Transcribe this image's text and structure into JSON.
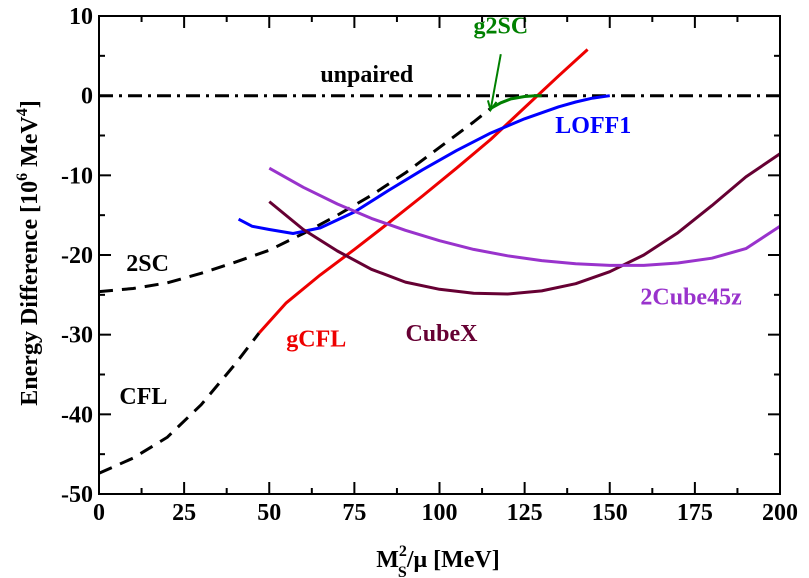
{
  "chart_data": {
    "type": "line",
    "title": "",
    "xlabel": {
      "base": "M",
      "sup": "2",
      "sub": "S",
      "rest": "/μ [MeV]"
    },
    "ylabel": {
      "main": "Energy Difference  [10",
      "sup1": "6",
      "mid": " MeV",
      "sup2": "4",
      "end": "]"
    },
    "xlim": [
      0,
      200
    ],
    "ylim": [
      -50,
      10
    ],
    "xticks": [
      0,
      25,
      50,
      75,
      100,
      125,
      150,
      175,
      200
    ],
    "yticks": [
      -50,
      -40,
      -30,
      -20,
      -10,
      0,
      10
    ],
    "grid": false,
    "legend": "none",
    "series": [
      {
        "name": "unpaired",
        "color": "#000000",
        "style": "dashdot",
        "x": [
          0,
          200
        ],
        "y": [
          0,
          0
        ]
      },
      {
        "name": "2SC",
        "color": "#000000",
        "style": "dashed",
        "x": [
          0,
          10,
          20,
          30,
          40,
          50,
          60,
          70,
          80,
          90,
          100,
          110,
          115
        ],
        "y": [
          -24.6,
          -24.2,
          -23.5,
          -22.3,
          -20.9,
          -19.4,
          -17.3,
          -15.0,
          -12.5,
          -9.7,
          -6.5,
          -3.3,
          -1.6
        ]
      },
      {
        "name": "CFL",
        "color": "#000000",
        "style": "dashed",
        "x": [
          0,
          10,
          20,
          30,
          40,
          47
        ],
        "y": [
          -47.4,
          -45.5,
          -42.9,
          -38.8,
          -33.7,
          -29.8
        ]
      },
      {
        "name": "gCFL",
        "color": "#ee0000",
        "style": "solid",
        "x": [
          47,
          55,
          65,
          75,
          85,
          95,
          105,
          115,
          125,
          135,
          143.5
        ],
        "y": [
          -29.8,
          -26.0,
          -22.5,
          -19.3,
          -16.0,
          -12.6,
          -9.1,
          -5.5,
          -1.5,
          2.5,
          5.8
        ]
      },
      {
        "name": "g2SC",
        "color": "#008000",
        "style": "solid",
        "x": [
          115,
          118,
          121,
          125,
          128,
          130
        ],
        "y": [
          -1.6,
          -0.9,
          -0.4,
          -0.1,
          0,
          0
        ]
      },
      {
        "name": "LOFF1",
        "color": "#0000ff",
        "style": "solid",
        "x": [
          41,
          45,
          50,
          57,
          65,
          75,
          85,
          95,
          105,
          115,
          125,
          135,
          140,
          145,
          150
        ],
        "y": [
          -15.5,
          -16.4,
          -16.8,
          -17.3,
          -16.6,
          -14.6,
          -11.9,
          -9.3,
          -6.9,
          -4.7,
          -2.9,
          -1.4,
          -0.8,
          -0.3,
          0
        ]
      },
      {
        "name": "CubeX",
        "color": "#660033",
        "style": "solid",
        "x": [
          50,
          60,
          70,
          80,
          90,
          100,
          110,
          120,
          130,
          140,
          150,
          160,
          170,
          180,
          190,
          200
        ],
        "y": [
          -13.3,
          -16.8,
          -19.5,
          -21.8,
          -23.4,
          -24.3,
          -24.8,
          -24.9,
          -24.5,
          -23.6,
          -22.1,
          -20.0,
          -17.2,
          -13.8,
          -10.2,
          -7.3
        ]
      },
      {
        "name": "2Cube45z",
        "color": "#9933cc",
        "style": "solid",
        "x": [
          50,
          60,
          70,
          80,
          90,
          100,
          110,
          120,
          130,
          140,
          150,
          160,
          170,
          180,
          190,
          200
        ],
        "y": [
          -9.1,
          -11.5,
          -13.6,
          -15.4,
          -16.9,
          -18.2,
          -19.3,
          -20.1,
          -20.7,
          -21.1,
          -21.3,
          -21.3,
          -21.0,
          -20.4,
          -19.2,
          -16.4
        ]
      }
    ],
    "annotations": [
      {
        "text": "unpaired",
        "color": "#000000",
        "x": 65,
        "y": 1.7
      },
      {
        "text": "g2SC",
        "color": "#008000",
        "x": 110,
        "y": 7.8
      },
      {
        "text": "LOFF1",
        "color": "#0000ff",
        "x": 134,
        "y": -4.7
      },
      {
        "text": "2SC",
        "color": "#000000",
        "x": 8,
        "y": -22.0
      },
      {
        "text": "gCFL",
        "color": "#ee0000",
        "x": 55,
        "y": -31.5
      },
      {
        "text": "CubeX",
        "color": "#660033",
        "x": 90,
        "y": -30.8
      },
      {
        "text": "2Cube45z",
        "color": "#9933cc",
        "x": 159,
        "y": -26.2
      },
      {
        "text": "CFL",
        "color": "#000000",
        "x": 6,
        "y": -38.7
      }
    ],
    "arrow": {
      "color": "#008000",
      "from": [
        118,
        5.2
      ],
      "to": [
        115,
        -1.8
      ]
    }
  }
}
